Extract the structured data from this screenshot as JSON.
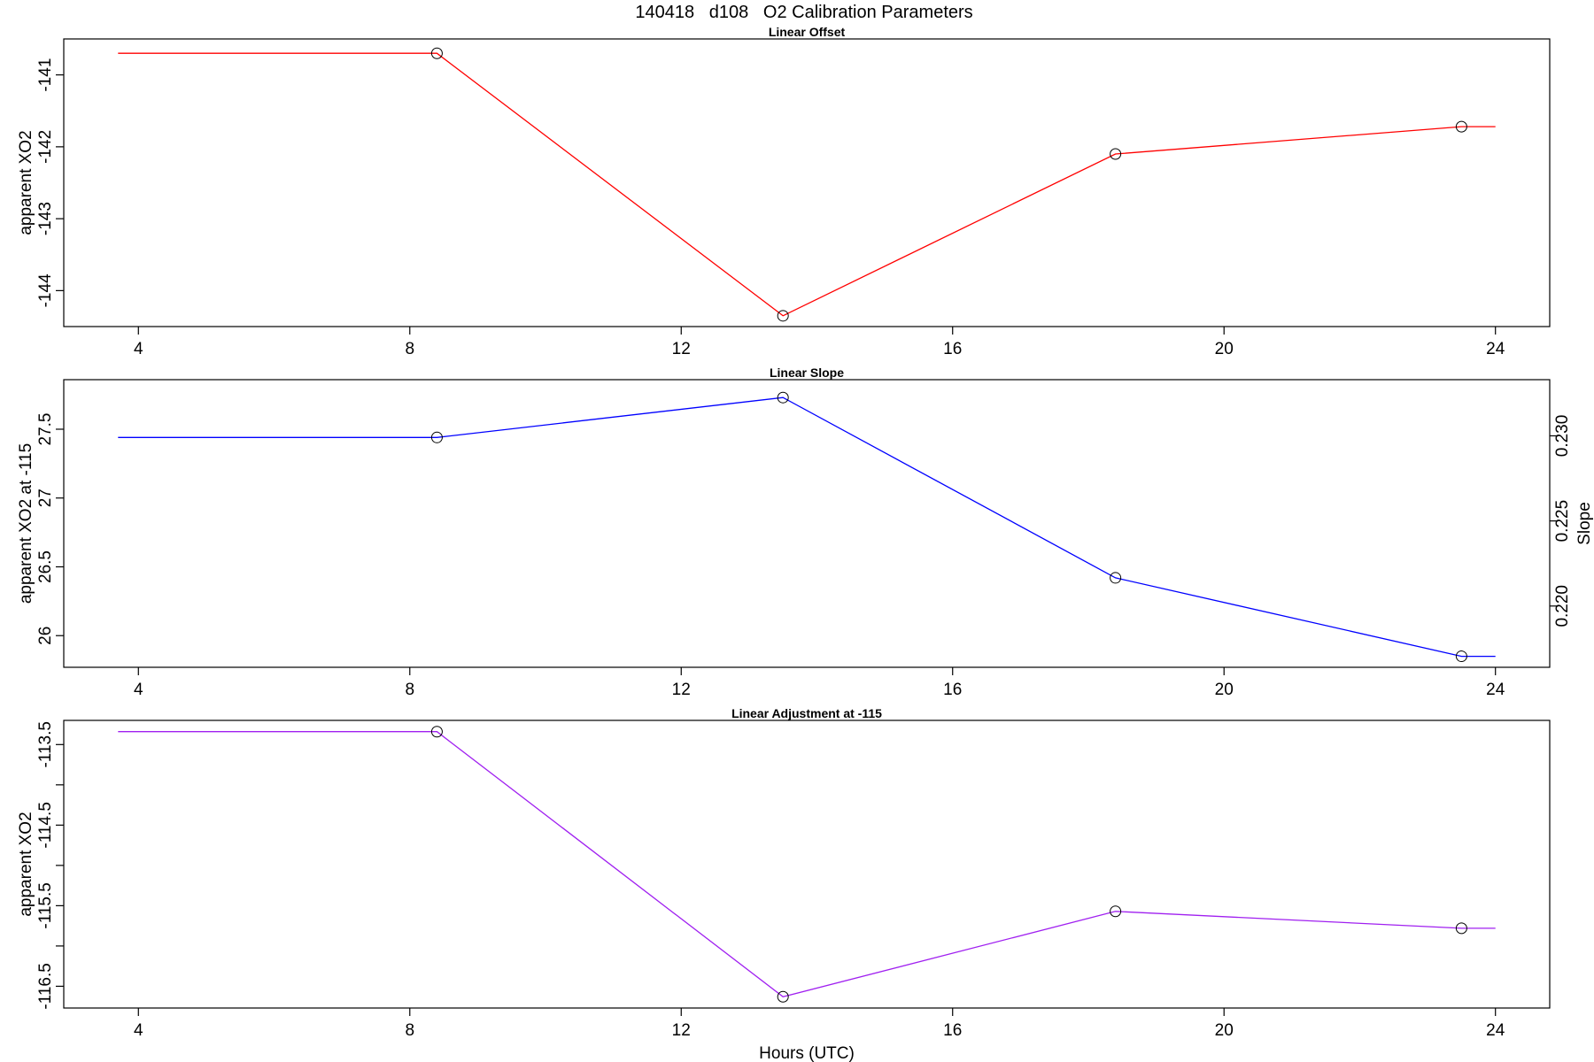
{
  "figure": {
    "title": "140418   d108   O2 Calibration Parameters"
  },
  "chart_data": [
    {
      "type": "line",
      "title": "Linear Offset",
      "xlabel": "",
      "ylabel": "apparent XO2",
      "xlim": [
        2.9,
        24.8
      ],
      "ylim": [
        -144.5,
        -140.5
      ],
      "xticks": [
        4,
        8,
        12,
        16,
        20,
        24
      ],
      "yticks": [
        -141,
        -142,
        -143,
        -144
      ],
      "grid": false,
      "series": [
        {
          "color": "#ff0000",
          "x": [
            3.7,
            8.4,
            13.5,
            18.4,
            23.5,
            24.0
          ],
          "y": [
            -140.7,
            -140.7,
            -144.35,
            -142.1,
            -141.72,
            -141.72
          ],
          "markers": [
            false,
            true,
            true,
            true,
            true,
            false
          ]
        }
      ]
    },
    {
      "type": "line",
      "title": "Linear Slope",
      "xlabel": "",
      "ylabel": "apparent XO2 at -115",
      "ylabel_right": "Slope",
      "xlim": [
        2.9,
        24.8
      ],
      "ylim": [
        25.77,
        27.86
      ],
      "ylim_right": [
        0.2164,
        0.2333
      ],
      "xticks": [
        4,
        8,
        12,
        16,
        20,
        24
      ],
      "yticks": [
        26.0,
        26.5,
        27.0,
        27.5
      ],
      "yticks_right": [
        0.22,
        0.225,
        0.23
      ],
      "grid": false,
      "series": [
        {
          "color": "#0000ff",
          "x": [
            3.7,
            8.4,
            13.5,
            18.4,
            23.5,
            24.0
          ],
          "y": [
            27.44,
            27.44,
            27.73,
            26.42,
            25.85,
            25.85
          ],
          "markers": [
            false,
            true,
            true,
            true,
            true,
            false
          ]
        }
      ]
    },
    {
      "type": "line",
      "title": "Linear Adjustment at -115",
      "xlabel": "Hours (UTC)",
      "ylabel": "apparent XO2",
      "xlim": [
        2.9,
        24.8
      ],
      "ylim": [
        -116.77,
        -113.2
      ],
      "xticks": [
        4,
        8,
        12,
        16,
        20,
        24
      ],
      "yticks": [
        -113.5,
        -114,
        -114.5,
        -115,
        -115.5,
        -116,
        -116.5
      ],
      "ytick_labels": [
        "-113.5",
        "",
        "-114.5",
        "",
        "-115.5",
        "",
        "-116.5"
      ],
      "grid": false,
      "series": [
        {
          "color": "#a020f0",
          "x": [
            3.7,
            8.4,
            13.5,
            18.4,
            23.5,
            24.0
          ],
          "y": [
            -113.34,
            -113.34,
            -116.63,
            -115.57,
            -115.78,
            -115.78
          ],
          "markers": [
            false,
            true,
            true,
            true,
            true,
            false
          ]
        }
      ]
    }
  ]
}
